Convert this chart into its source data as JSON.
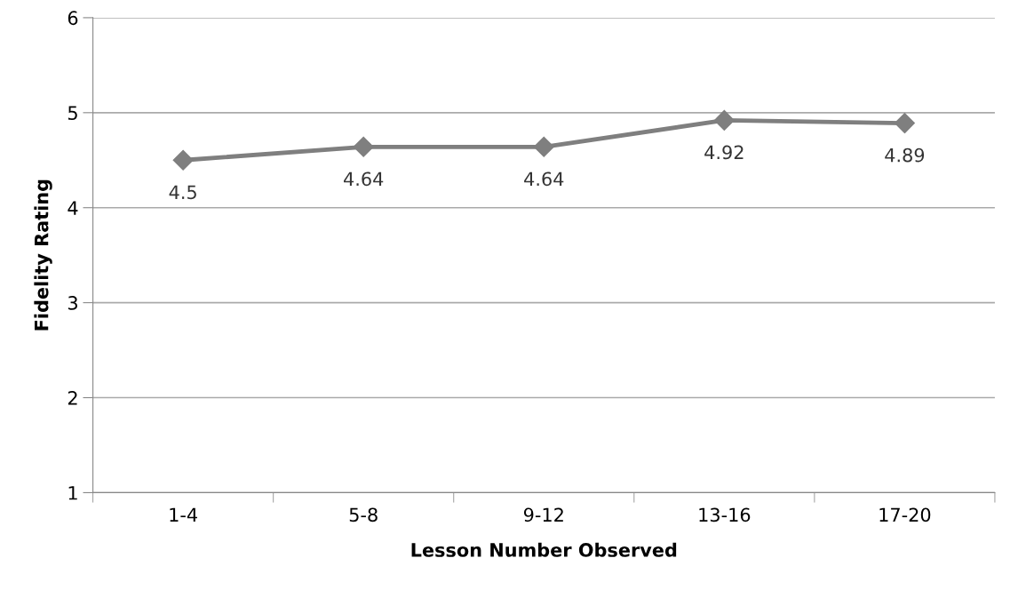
{
  "chart_data": {
    "type": "line",
    "xlabel": "Lesson Number Observed",
    "ylabel": "Fidelity Rating",
    "categories": [
      "1-4",
      "5-8",
      "9-12",
      "13-16",
      "17-20"
    ],
    "series": [
      {
        "color": "#7f7f7f",
        "values": [
          4.5,
          4.64,
          4.64,
          4.92,
          4.89
        ]
      }
    ],
    "ylim": [
      1,
      6
    ],
    "yticks": [
      1,
      2,
      3,
      4,
      5,
      6
    ],
    "grid": "y",
    "marker": "diamond",
    "line_style": "solid",
    "data_labels": true,
    "legend": false
  }
}
